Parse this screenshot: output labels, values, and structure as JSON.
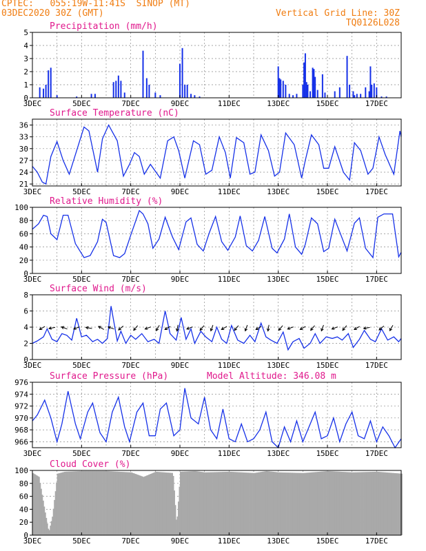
{
  "header": {
    "source_line": "CPTEC:   055:19W-11:41S  SINOP (MT)",
    "run_line": "03DEC2020 30Z (GMT)",
    "grid_line": "Vertical Grid Line: 30Z",
    "code_line": "TQ0126L028"
  },
  "colors": {
    "header_text": "#f07c10",
    "panel_title": "#e0188c",
    "series": "#1530e8",
    "cloud_fill": "#a9a9a9",
    "grid": "#888888"
  },
  "x_tick_labels": [
    "3DEC",
    "5DEC",
    "7DEC",
    "9DEC",
    "11DEC",
    "13DEC",
    "15DEC",
    "17DEC"
  ],
  "chart_data": [
    {
      "id": "precip",
      "type": "bar",
      "title": "Precipitation (mm/h)",
      "ylim": [
        0,
        5
      ],
      "yticks": [
        0,
        1,
        2,
        3,
        4,
        5
      ],
      "grid": true,
      "x_days": [
        3,
        18
      ],
      "series": [
        {
          "x": [
            3.3,
            3.45,
            3.55,
            3.65,
            3.75,
            4.0,
            4.8,
            5.4,
            5.55,
            6.3,
            6.4,
            6.5,
            6.6,
            6.75,
            7.5,
            7.65,
            7.75,
            8.0,
            8.2,
            9.0,
            9.1,
            9.2,
            9.3,
            9.45,
            9.6,
            9.8,
            13.0,
            13.05,
            13.1,
            13.2,
            13.3,
            13.45,
            13.6,
            13.75,
            14.0,
            14.05,
            14.1,
            14.15,
            14.2,
            14.3,
            14.4,
            14.45,
            14.5,
            14.6,
            14.8,
            14.9,
            15.3,
            15.5,
            15.8,
            15.9,
            16.05,
            16.1,
            16.2,
            16.35,
            16.55,
            16.7,
            16.75,
            16.8,
            16.9,
            17.0,
            17.2,
            17.4
          ],
          "y": [
            0.8,
            0.7,
            1.0,
            2.1,
            2.3,
            0.2,
            0.1,
            0.3,
            0.3,
            1.2,
            1.3,
            1.7,
            1.3,
            0.4,
            3.6,
            1.5,
            1.0,
            0.4,
            0.2,
            2.6,
            3.8,
            1.0,
            1.0,
            0.3,
            0.2,
            0.1,
            2.4,
            1.5,
            1.4,
            1.3,
            1.0,
            0.3,
            0.2,
            0.3,
            1.0,
            2.7,
            3.4,
            1.2,
            1.0,
            0.5,
            2.3,
            2.2,
            1.6,
            0.6,
            1.8,
            0.4,
            0.5,
            0.8,
            3.2,
            1.0,
            0.5,
            0.2,
            0.3,
            0.3,
            0.8,
            0.5,
            2.4,
            1.0,
            1.1,
            0.8,
            0.1,
            0.1
          ]
        }
      ]
    },
    {
      "id": "temp",
      "type": "line",
      "title": "Surface Temperature (nC)",
      "ylim": [
        20.5,
        37.5
      ],
      "yticks": [
        21,
        24,
        27,
        30,
        33,
        36
      ],
      "grid": true,
      "x_days": [
        3,
        18
      ],
      "series": [
        {
          "x": [
            3.0,
            3.2,
            3.4,
            3.55,
            3.75,
            4.0,
            4.25,
            4.5,
            4.85,
            5.1,
            5.3,
            5.65,
            5.85,
            6.1,
            6.45,
            6.7,
            6.95,
            7.15,
            7.35,
            7.55,
            7.8,
            8.2,
            8.5,
            8.75,
            8.95,
            9.2,
            9.55,
            9.8,
            10.05,
            10.3,
            10.6,
            10.85,
            11.05,
            11.3,
            11.6,
            11.85,
            12.05,
            12.3,
            12.6,
            12.85,
            13.05,
            13.3,
            13.65,
            13.95,
            14.1,
            14.35,
            14.65,
            14.85,
            15.05,
            15.3,
            15.65,
            15.9,
            16.1,
            16.35,
            16.65,
            16.85,
            17.1,
            17.35,
            17.7,
            17.95,
            18.0
          ],
          "y": [
            25.5,
            24.0,
            21.5,
            21.0,
            28.0,
            31.8,
            27.0,
            23.5,
            30.5,
            35.5,
            34.5,
            24.0,
            32.5,
            36.0,
            32.0,
            23.0,
            26.0,
            29.0,
            28.0,
            23.5,
            26.0,
            22.5,
            32.0,
            33.0,
            29.5,
            22.5,
            32.0,
            31.0,
            23.5,
            24.5,
            33.0,
            29.0,
            22.5,
            32.8,
            31.5,
            23.5,
            24.0,
            33.5,
            29.5,
            23.0,
            24.0,
            34.0,
            31.0,
            22.5,
            27.0,
            33.5,
            31.0,
            25.0,
            25.0,
            30.5,
            24.0,
            22.0,
            31.5,
            29.5,
            23.5,
            25.0,
            33.0,
            28.5,
            23.5,
            34.5,
            33.0
          ]
        }
      ]
    },
    {
      "id": "humidity",
      "type": "line",
      "title": "Relative Humidity (%)",
      "ylim": [
        0,
        100
      ],
      "yticks": [
        0,
        20,
        40,
        60,
        80,
        100
      ],
      "grid": true,
      "x_days": [
        3,
        18
      ],
      "series": [
        {
          "x": [
            3.0,
            3.25,
            3.45,
            3.6,
            3.75,
            4.0,
            4.25,
            4.45,
            4.75,
            5.1,
            5.35,
            5.65,
            5.85,
            6.0,
            6.3,
            6.55,
            6.75,
            7.0,
            7.35,
            7.5,
            7.7,
            7.9,
            8.15,
            8.4,
            8.7,
            8.95,
            9.25,
            9.45,
            9.7,
            9.95,
            10.2,
            10.45,
            10.7,
            10.95,
            11.25,
            11.45,
            11.7,
            11.95,
            12.2,
            12.45,
            12.75,
            12.95,
            13.25,
            13.45,
            13.7,
            13.95,
            14.1,
            14.35,
            14.6,
            14.85,
            15.05,
            15.3,
            15.55,
            15.8,
            16.1,
            16.3,
            16.55,
            16.85,
            17.05,
            17.3,
            17.65,
            17.9,
            18.0
          ],
          "y": [
            67,
            75,
            88,
            86,
            60,
            51,
            88,
            88,
            45,
            24,
            27,
            48,
            82,
            77,
            27,
            24,
            30,
            58,
            95,
            90,
            75,
            38,
            52,
            85,
            55,
            36,
            78,
            84,
            44,
            34,
            62,
            86,
            48,
            35,
            55,
            87,
            42,
            34,
            50,
            86,
            38,
            31,
            52,
            90,
            40,
            29,
            44,
            84,
            75,
            33,
            38,
            82,
            58,
            34,
            76,
            84,
            38,
            24,
            85,
            90,
            90,
            25,
            32
          ]
        }
      ]
    },
    {
      "id": "wind",
      "type": "line",
      "title": "Surface Wind (m/s)",
      "ylim": [
        0,
        8
      ],
      "yticks": [
        0,
        2,
        4,
        6,
        8
      ],
      "grid": true,
      "x_days": [
        3,
        18
      ],
      "series": [
        {
          "x": [
            3.0,
            3.2,
            3.45,
            3.6,
            3.8,
            4.0,
            4.2,
            4.4,
            4.6,
            4.8,
            5.0,
            5.2,
            5.45,
            5.65,
            5.85,
            6.05,
            6.2,
            6.45,
            6.6,
            6.8,
            7.0,
            7.2,
            7.45,
            7.7,
            7.95,
            8.15,
            8.4,
            8.6,
            8.85,
            9.05,
            9.25,
            9.45,
            9.6,
            9.85,
            10.05,
            10.3,
            10.5,
            10.7,
            10.9,
            11.1,
            11.35,
            11.6,
            11.85,
            12.05,
            12.3,
            12.5,
            12.7,
            12.95,
            13.2,
            13.4,
            13.6,
            13.85,
            14.05,
            14.3,
            14.5,
            14.7,
            14.95,
            15.2,
            15.4,
            15.6,
            15.85,
            16.05,
            16.3,
            16.5,
            16.75,
            16.95,
            17.2,
            17.45,
            17.7,
            17.9,
            18.0
          ],
          "y": [
            2.0,
            2.3,
            2.8,
            3.8,
            2.5,
            2.2,
            3.2,
            3.0,
            2.4,
            5.1,
            2.8,
            3.0,
            2.2,
            2.5,
            2.0,
            2.6,
            6.6,
            2.3,
            3.5,
            2.0,
            3.0,
            2.5,
            3.2,
            2.2,
            2.5,
            2.0,
            6.0,
            3.2,
            2.4,
            5.2,
            2.5,
            3.8,
            2.0,
            3.5,
            2.8,
            2.2,
            4.0,
            2.5,
            2.0,
            4.2,
            2.4,
            2.0,
            3.0,
            2.2,
            4.5,
            2.8,
            2.4,
            2.0,
            3.4,
            1.2,
            2.2,
            2.6,
            1.4,
            2.0,
            3.2,
            2.0,
            2.8,
            2.6,
            2.8,
            2.4,
            3.2,
            1.5,
            2.5,
            3.6,
            2.5,
            2.2,
            3.8,
            2.4,
            2.8,
            2.2,
            2.6
          ]
        }
      ],
      "vectors": {
        "x": [
          3.4,
          3.8,
          4.3,
          4.8,
          5.3,
          5.8,
          6.2,
          6.6,
          7.2,
          7.7,
          8.1,
          8.5,
          8.9,
          9.4,
          9.9,
          10.3,
          10.8,
          11.3,
          11.7,
          12.2,
          12.6,
          13.1,
          13.5,
          14.0,
          14.4,
          14.8,
          15.3,
          15.7,
          16.2,
          16.6,
          17.2,
          17.6
        ],
        "angle_deg": [
          210,
          190,
          160,
          200,
          170,
          150,
          160,
          220,
          230,
          200,
          240,
          210,
          260,
          200,
          230,
          250,
          210,
          230,
          250,
          210,
          260,
          230,
          200,
          210,
          230,
          250,
          200,
          230,
          210,
          190,
          220,
          240
        ]
      }
    },
    {
      "id": "pressure",
      "type": "line",
      "title": "Surface Pressure (hPa)",
      "note": "Model Altitude: 346.08 m",
      "ylim": [
        965,
        976
      ],
      "yticks": [
        966,
        968,
        970,
        972,
        974,
        976
      ],
      "grid": true,
      "x_days": [
        3,
        18
      ],
      "series": [
        {
          "x": [
            3.0,
            3.2,
            3.5,
            3.75,
            4.0,
            4.2,
            4.45,
            4.75,
            4.95,
            5.25,
            5.45,
            5.75,
            6.0,
            6.25,
            6.5,
            6.75,
            6.95,
            7.25,
            7.5,
            7.75,
            8.0,
            8.2,
            8.45,
            8.75,
            9.0,
            9.2,
            9.45,
            9.75,
            10.0,
            10.25,
            10.5,
            10.75,
            11.0,
            11.25,
            11.5,
            11.75,
            12.0,
            12.25,
            12.5,
            12.75,
            13.0,
            13.25,
            13.5,
            13.75,
            14.0,
            14.25,
            14.5,
            14.75,
            15.0,
            15.25,
            15.5,
            15.75,
            16.0,
            16.25,
            16.5,
            16.75,
            17.0,
            17.25,
            17.5,
            17.75,
            18.0
          ],
          "y": [
            969.5,
            970.5,
            973.0,
            970.0,
            966.0,
            969.0,
            974.5,
            969.0,
            966.5,
            971.0,
            972.5,
            967.5,
            966.0,
            971.0,
            973.5,
            968.5,
            966.0,
            971.0,
            972.5,
            967.0,
            967.0,
            971.5,
            972.5,
            967.0,
            968.0,
            975.0,
            970.0,
            969.0,
            973.5,
            968.0,
            966.5,
            971.5,
            966.5,
            966.0,
            969.0,
            966.0,
            966.5,
            968.0,
            971.0,
            966.0,
            965.0,
            968.5,
            966.0,
            969.5,
            966.0,
            968.5,
            971.0,
            966.5,
            967.0,
            970.0,
            966.0,
            969.0,
            971.0,
            967.0,
            966.5,
            969.5,
            966.0,
            968.5,
            967.0,
            965.0,
            966.5
          ]
        }
      ]
    },
    {
      "id": "cloud",
      "type": "bar",
      "title": "Cloud Cover (%)",
      "ylim": [
        0,
        100
      ],
      "yticks": [
        0,
        20,
        40,
        60,
        80,
        100
      ],
      "grid": true,
      "x_days": [
        3,
        18
      ],
      "series": [
        {
          "x": [
            3.0,
            3.25,
            3.5,
            3.65,
            3.8,
            4.0,
            4.3,
            5.0,
            6.0,
            7.0,
            7.5,
            8.0,
            8.7,
            8.85,
            9.0,
            9.6,
            10.0,
            11.0,
            12.0,
            12.5,
            13.0,
            14.0,
            15.0,
            16.0,
            17.0,
            18.0
          ],
          "y": [
            96,
            90,
            35,
            5,
            30,
            95,
            98,
            99,
            99,
            97,
            90,
            98,
            96,
            15,
            98,
            99,
            97,
            98,
            96,
            99,
            97,
            96,
            99,
            97,
            98,
            95
          ]
        }
      ]
    }
  ]
}
